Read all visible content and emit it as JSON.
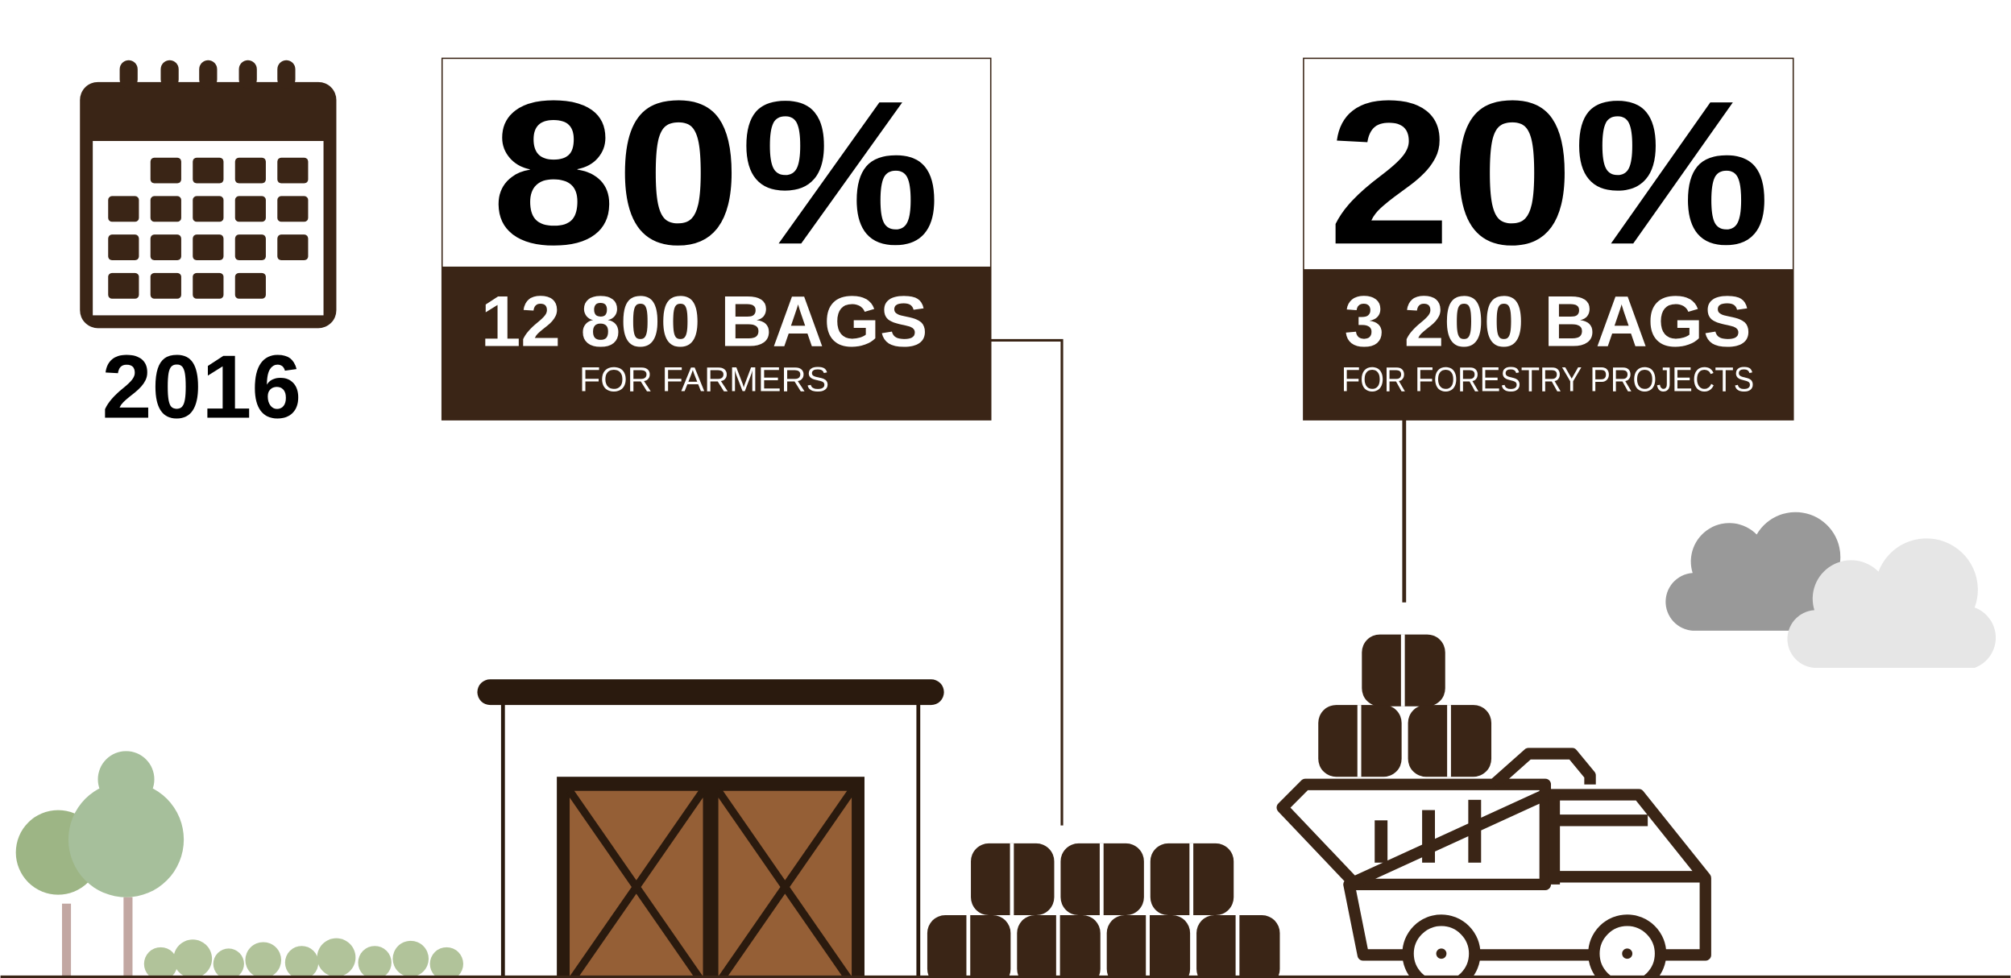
{
  "year": "2016",
  "boxes": [
    {
      "percent": "80%",
      "bags": "12 800 BAGS",
      "label": "FOR FARMERS"
    },
    {
      "percent": "20%",
      "bags": "3 200 BAGS",
      "label": "FOR FORESTRY PROJECTS"
    }
  ]
}
